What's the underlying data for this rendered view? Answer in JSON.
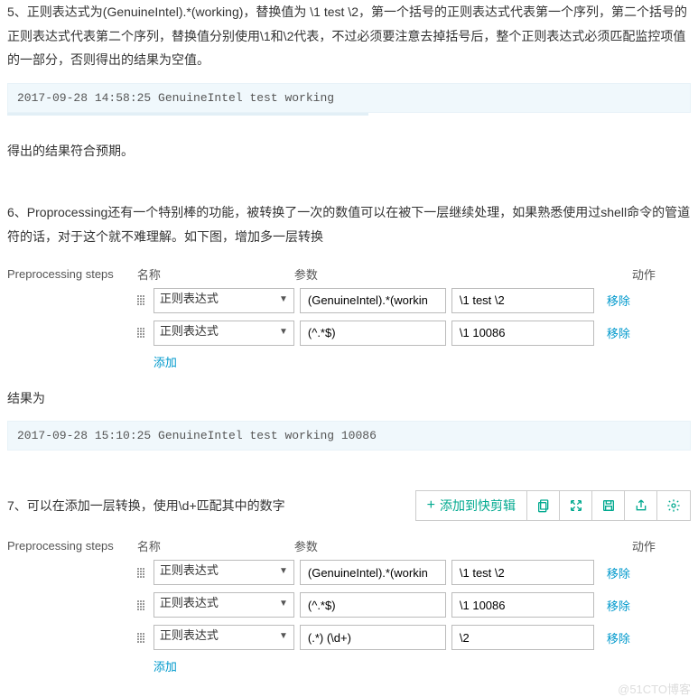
{
  "para5": "5、正则表达式为(GenuineIntel).*(working)，替换值为 \\1 test \\2，第一个括号的正则表达式代表第一个序列，第二个括号的正则表达式代表第二个序列，替换值分别使用\\1和\\2代表，不过必须要注意去掉括号后，整个正则表达式必须匹配监控项值的一部分，否则得出的结果为空值。",
  "code1": "2017-09-28 14:58:25  GenuineIntel test working",
  "para5b": "得出的结果符合预期。",
  "para6": "6、Proprocessing还有一个特别棒的功能，被转换了一次的数值可以在被下一层继续处理，如果熟悉使用过shell命令的管道符的话，对于这个就不难理解。如下图，增加多一层转换",
  "headers": {
    "name": "名称",
    "param": "参数",
    "action": "动作"
  },
  "prep_label": "Preprocessing steps",
  "steps1": [
    {
      "type": "正则表达式",
      "p1": "(GenuineIntel).*(workin",
      "p2": "\\1 test \\2"
    },
    {
      "type": "正则表达式",
      "p1": "(^.*$)",
      "p2": "\\1 10086"
    }
  ],
  "remove": "移除",
  "add": "添加",
  "add_trunc": "添加",
  "para6b": "结果为",
  "code2": "2017-09-28 15:10:25  GenuineIntel test working 10086",
  "para7": "7、可以在添加一层转换，使用\\d+匹配其中的数字",
  "toolbar_add": "添加到快剪辑",
  "steps2": [
    {
      "type": "正则表达式",
      "p1": "(GenuineIntel).*(workin",
      "p2": "\\1 test \\2"
    },
    {
      "type": "正则表达式",
      "p1": "(^.*$)",
      "p2": "\\1 10086"
    },
    {
      "type": "正则表达式",
      "p1": "(.*) (\\d+)",
      "p2": "\\2"
    }
  ],
  "watermark": "@51CTO博客",
  "colors": {
    "link": "#0099cc",
    "toolbar": "#00a98f",
    "code_bg": "#f0f8fc"
  }
}
